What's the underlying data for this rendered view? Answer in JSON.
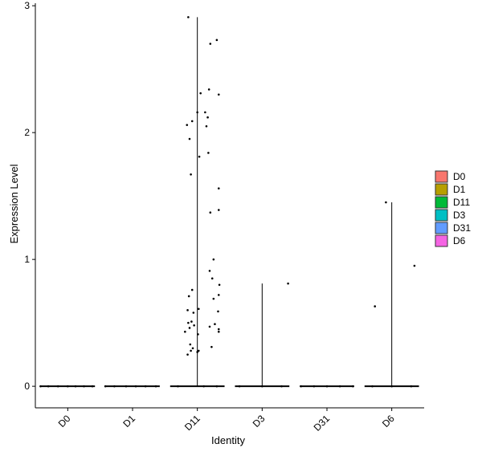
{
  "chart_data": {
    "type": "violin",
    "title": "",
    "xlabel": "Identity",
    "ylabel": "Expression Level",
    "ylim": [
      -0.17,
      3.02
    ],
    "yticks": [
      0,
      1,
      2,
      3
    ],
    "grid": false,
    "legend_position": "right",
    "categories": [
      "D0",
      "D1",
      "D11",
      "D3",
      "D31",
      "D6"
    ],
    "series": [
      {
        "name": "D0",
        "color": "#F8766D",
        "max": 0,
        "points": [
          [
            -0.42,
            0
          ],
          [
            -0.3,
            0
          ],
          [
            -0.15,
            0
          ],
          [
            0,
            0
          ],
          [
            0.12,
            0
          ],
          [
            0.25,
            0
          ],
          [
            0.38,
            0
          ]
        ]
      },
      {
        "name": "D1",
        "color": "#B79F00",
        "max": 0,
        "points": [
          [
            -0.42,
            0
          ],
          [
            -0.28,
            0
          ],
          [
            -0.1,
            0
          ],
          [
            0.05,
            0
          ],
          [
            0.2,
            0
          ],
          [
            0.36,
            0
          ]
        ]
      },
      {
        "name": "D11",
        "color": "#00BA38",
        "max": 2.91,
        "points": [
          [
            -0.14,
            2.91
          ],
          [
            0.3,
            2.73
          ],
          [
            0.2,
            2.7
          ],
          [
            0.18,
            2.34
          ],
          [
            0.33,
            2.3
          ],
          [
            0.05,
            2.31
          ],
          [
            0.12,
            2.16
          ],
          [
            0.0,
            2.16
          ],
          [
            0.16,
            2.12
          ],
          [
            0.14,
            2.05
          ],
          [
            -0.08,
            2.09
          ],
          [
            -0.16,
            2.06
          ],
          [
            -0.12,
            1.95
          ],
          [
            0.17,
            1.84
          ],
          [
            0.03,
            1.81
          ],
          [
            -0.1,
            1.67
          ],
          [
            0.33,
            1.56
          ],
          [
            0.33,
            1.39
          ],
          [
            0.2,
            1.37
          ],
          [
            0.25,
            1.0
          ],
          [
            0.19,
            0.91
          ],
          [
            0.23,
            0.85
          ],
          [
            0.34,
            0.8
          ],
          [
            -0.08,
            0.76
          ],
          [
            -0.13,
            0.71
          ],
          [
            0.33,
            0.72
          ],
          [
            0.25,
            0.69
          ],
          [
            0.02,
            0.61
          ],
          [
            -0.15,
            0.6
          ],
          [
            0.32,
            0.59
          ],
          [
            -0.06,
            0.58
          ],
          [
            -0.09,
            0.51
          ],
          [
            -0.14,
            0.5
          ],
          [
            -0.12,
            0.46
          ],
          [
            -0.05,
            0.48
          ],
          [
            0.27,
            0.49
          ],
          [
            0.19,
            0.47
          ],
          [
            0.33,
            0.45
          ],
          [
            0.33,
            0.43
          ],
          [
            -0.19,
            0.43
          ],
          [
            0.01,
            0.41
          ],
          [
            -0.11,
            0.33
          ],
          [
            -0.07,
            0.3
          ],
          [
            0.22,
            0.31
          ],
          [
            -0.1,
            0.28
          ],
          [
            0.02,
            0.28
          ],
          [
            0.0,
            0.27
          ],
          [
            -0.15,
            0.25
          ],
          [
            -0.3,
            0
          ],
          [
            0.1,
            0
          ],
          [
            0.3,
            0
          ]
        ]
      },
      {
        "name": "D3",
        "color": "#00BFC4",
        "max": 0.81,
        "points": [
          [
            0.4,
            0.81
          ],
          [
            -0.35,
            0
          ],
          [
            0,
            0
          ],
          [
            0.3,
            0
          ]
        ]
      },
      {
        "name": "D31",
        "color": "#619CFF",
        "max": 0,
        "points": [
          [
            -0.4,
            0
          ],
          [
            -0.2,
            0
          ],
          [
            0,
            0
          ],
          [
            0.2,
            0
          ],
          [
            0.4,
            0
          ]
        ]
      },
      {
        "name": "D6",
        "color": "#F564E3",
        "max": 1.45,
        "points": [
          [
            -0.09,
            1.45
          ],
          [
            0.35,
            0.95
          ],
          [
            -0.26,
            0.63
          ],
          [
            -0.3,
            0
          ],
          [
            0,
            0
          ],
          [
            0.3,
            0
          ]
        ]
      }
    ]
  }
}
